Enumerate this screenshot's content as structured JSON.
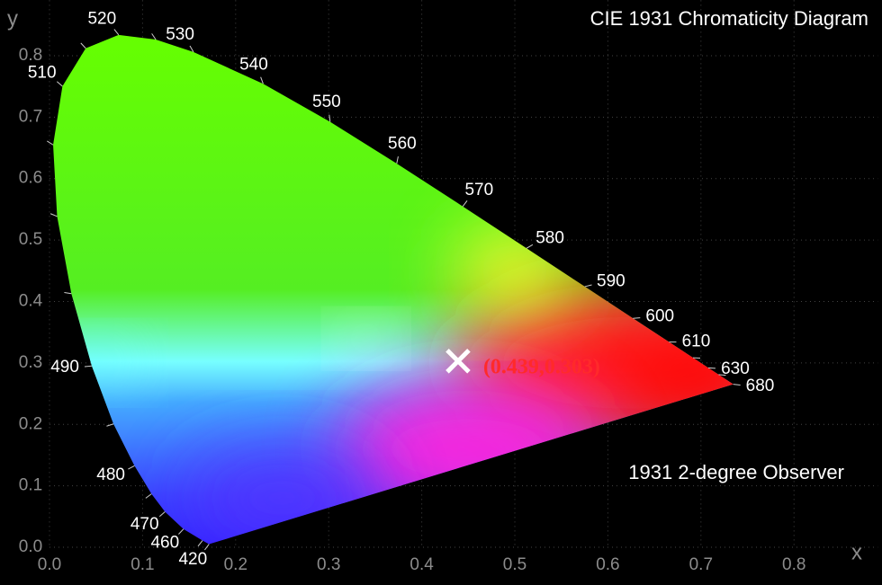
{
  "chart_data": {
    "type": "scatter",
    "title": "CIE 1931 Chromaticity Diagram",
    "annotation": "1931 2-degree Observer",
    "xlabel": "x",
    "ylabel": "y",
    "xlim": [
      -0.05,
      0.89
    ],
    "ylim": [
      -0.05,
      0.89
    ],
    "xticks": [
      {
        "value": 0,
        "label": "0.0"
      },
      0.1,
      0.2,
      0.3,
      0.4,
      0.5,
      0.6,
      0.7,
      0.8
    ],
    "yticks": [
      {
        "value": 0,
        "label": "0.0"
      },
      0.1,
      0.2,
      0.3,
      0.4,
      0.5,
      0.6,
      0.7,
      0.8
    ],
    "grid": true,
    "locus": {
      "wavelengths": [
        420,
        null,
        460,
        470,
        null,
        480,
        null,
        490,
        null,
        null,
        null,
        510,
        null,
        520,
        null,
        530,
        540,
        550,
        560,
        570,
        580,
        590,
        600,
        610,
        null,
        630,
        null,
        680
      ],
      "x": [
        0.1714,
        0.1644,
        0.144,
        0.1241,
        0.1096,
        0.0913,
        0.0687,
        0.0454,
        0.0235,
        0.0082,
        0.0039,
        0.0139,
        0.0389,
        0.0743,
        0.1142,
        0.1547,
        0.2296,
        0.3016,
        0.3731,
        0.4441,
        0.5125,
        0.5752,
        0.627,
        0.6658,
        0.6915,
        0.7079,
        0.719,
        0.7347
      ],
      "y": [
        0.0051,
        0.0109,
        0.0297,
        0.0578,
        0.0868,
        0.1327,
        0.2007,
        0.295,
        0.4127,
        0.5384,
        0.6548,
        0.7502,
        0.812,
        0.8338,
        0.8262,
        0.8059,
        0.7543,
        0.6923,
        0.6245,
        0.5547,
        0.4866,
        0.4242,
        0.3725,
        0.334,
        0.3083,
        0.292,
        0.2809,
        0.2653
      ]
    },
    "point": {
      "x": 0.439,
      "y": 0.303,
      "label": "(0.439,0.303)",
      "color": "#ffffff",
      "label_color": "#ff2a2a"
    }
  }
}
